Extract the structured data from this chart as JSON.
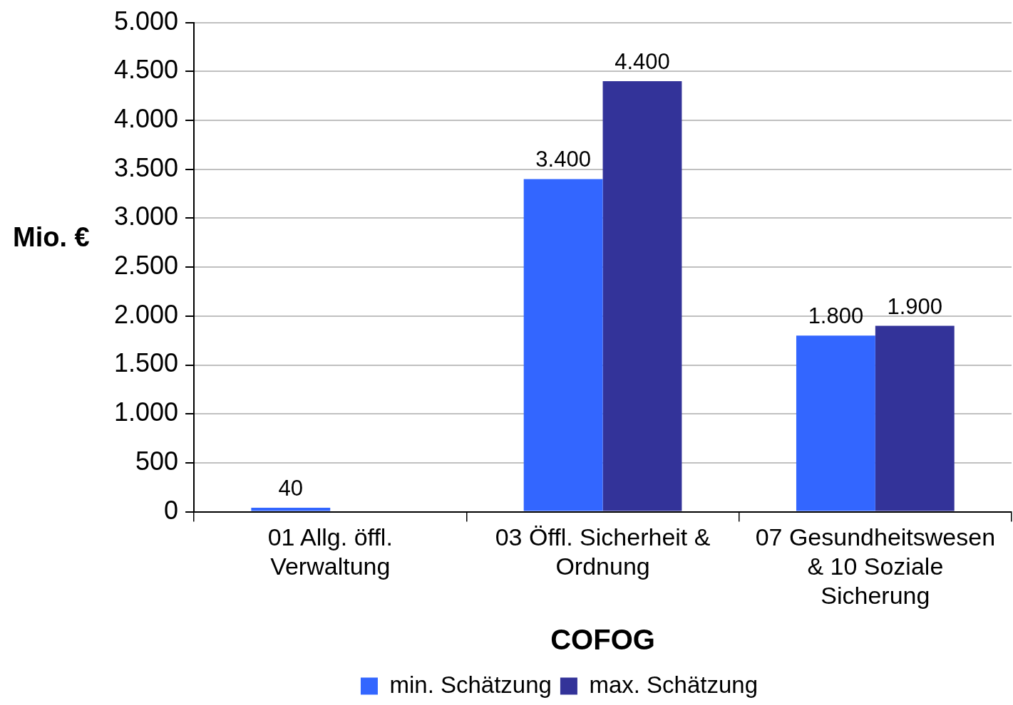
{
  "chart_data": {
    "type": "bar",
    "categories": [
      "01 Allg. öffl. Verwaltung",
      "03 Öffl. Sicherheit & Ordnung",
      "07 Gesundheitswesen & 10 Soziale Sicherung"
    ],
    "series": [
      {
        "name": "min. Schätzung",
        "color": "#3366ff",
        "values": [
          40,
          3400,
          1800
        ],
        "value_labels": [
          "40",
          "3.400",
          "1.800"
        ]
      },
      {
        "name": "max. Schätzung",
        "color": "#333399",
        "values": [
          null,
          4400,
          1900
        ],
        "value_labels": [
          null,
          "4.400",
          "1.900"
        ]
      }
    ],
    "xlabel": "COFOG",
    "ylabel": "Mio. €",
    "ylim": [
      0,
      5000
    ],
    "yticks": [
      {
        "value": 0,
        "label": "0"
      },
      {
        "value": 500,
        "label": "500"
      },
      {
        "value": 1000,
        "label": "1.000"
      },
      {
        "value": 1500,
        "label": "1.500"
      },
      {
        "value": 2000,
        "label": "2.000"
      },
      {
        "value": 2500,
        "label": "2.500"
      },
      {
        "value": 3000,
        "label": "3.000"
      },
      {
        "value": 3500,
        "label": "3.500"
      },
      {
        "value": 4000,
        "label": "4.000"
      },
      {
        "value": 4500,
        "label": "4.500"
      },
      {
        "value": 5000,
        "label": "5.000"
      }
    ],
    "grid": "y",
    "legend": "bottom"
  }
}
